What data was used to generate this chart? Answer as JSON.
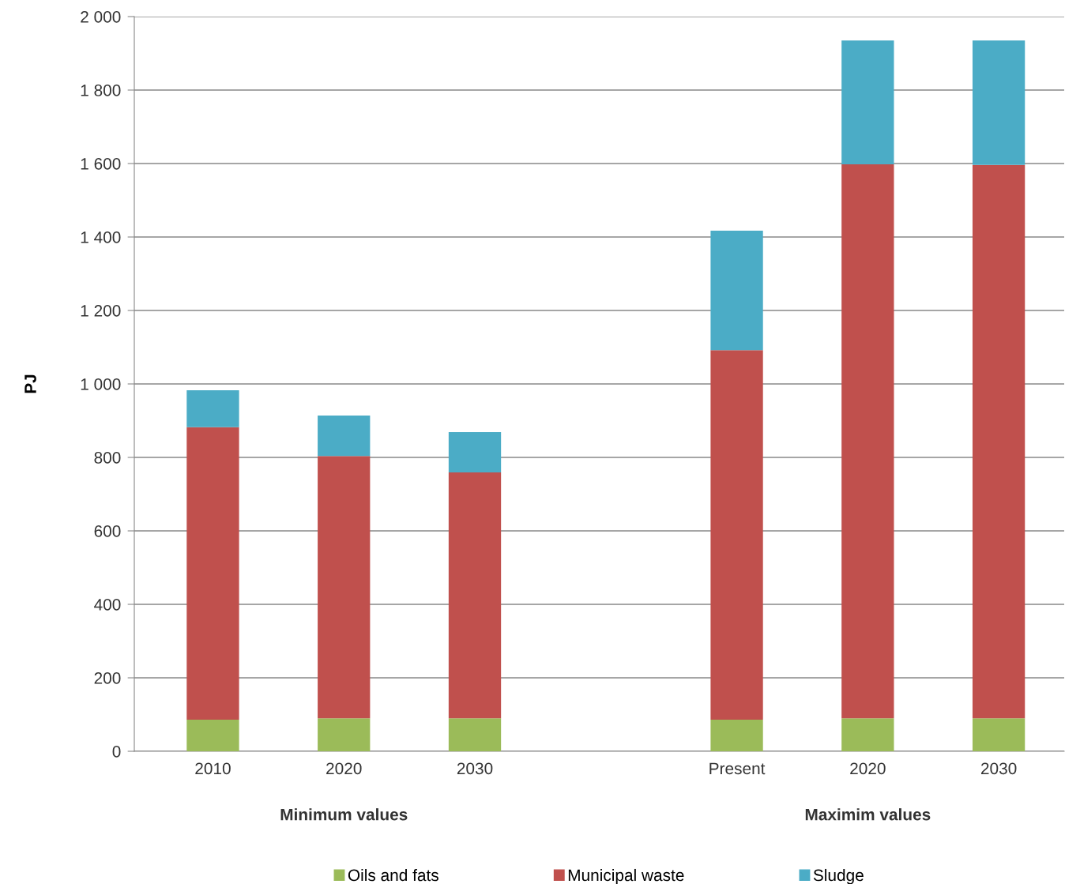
{
  "chart_data": {
    "type": "bar",
    "stacked": true,
    "ylabel": "PJ",
    "categories": [
      "2010",
      "2020",
      "2030",
      null,
      "Present",
      "2020",
      "2030"
    ],
    "series": [
      {
        "name": "Oils and fats",
        "color": "#9bbb59",
        "values": [
          86,
          90,
          90,
          null,
          86,
          90,
          90
        ]
      },
      {
        "name": "Municipal waste",
        "color": "#c0504d",
        "values": [
          796,
          714,
          669,
          null,
          1006,
          1508,
          1506
        ]
      },
      {
        "name": "Sludge",
        "color": "#4bacc6",
        "values": [
          101,
          110,
          110,
          null,
          325,
          337,
          339
        ]
      }
    ],
    "ylim": [
      0,
      2000
    ],
    "yticks": [
      0,
      200,
      400,
      600,
      800,
      {
        "value": 1000,
        "label": "1 000"
      },
      {
        "value": 1200,
        "label": "1 200"
      },
      {
        "value": 1400,
        "label": "1 400"
      },
      {
        "value": 1600,
        "label": "1 600"
      },
      {
        "value": 1800,
        "label": "1 800"
      },
      {
        "value": 2000,
        "label": "2 000"
      }
    ],
    "grid": "y",
    "legend": "bottom",
    "annotations": [
      "Minimum values",
      "Maximim values"
    ]
  }
}
